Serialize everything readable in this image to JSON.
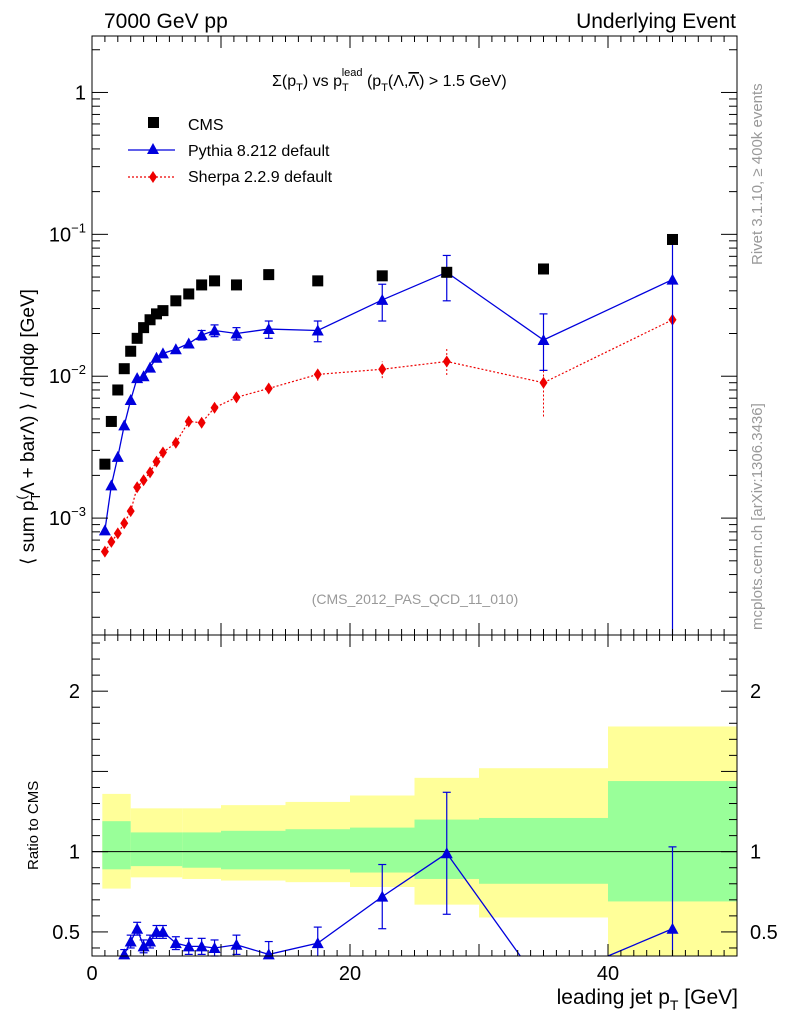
{
  "header": {
    "left": "7000 GeV pp",
    "right": "Underlying Event"
  },
  "side": {
    "rivet": "Rivet 3.1.10, ≥ 400k events",
    "mcplots": "mcplots.cern.ch [arXiv:1306.3436]"
  },
  "colors": {
    "cms": "#000000",
    "pythia": "#0000dd",
    "sherpa": "#ee0000",
    "band_inner": "#99ff99",
    "band_outer": "#ffff99"
  },
  "chart_data": [
    {
      "type": "scatter",
      "title": "Σ(pT) vs pT lead (pT(Λ,Λ̅) > 1.5 GeV)",
      "title_parts": {
        "t1": "Σ(p",
        "t2": "T",
        "t3": ") vs p",
        "t4": "T",
        "t5": "lead",
        "t6": " (p",
        "t7": "T",
        "t8": "(Λ,",
        "t9": "Λ",
        "t10": ") > 1.5 GeV)"
      },
      "ylabel": "⟨ sum pT(Λ + barΛ) ⟩ / dηdφ [GeV]",
      "ylabel_parts": {
        "a": "⟨ sum p",
        "b": "T",
        "c": "(",
        "d": "Λ + barΛ) ⟩ / dηdφ [GeV]"
      },
      "yscale": "log",
      "ylim": [
        0.00015,
        2.5
      ],
      "xlim": [
        0,
        50
      ],
      "yticks": [
        {
          "v": 0.001,
          "base": "10",
          "exp": "−3"
        },
        {
          "v": 0.01,
          "base": "10",
          "exp": "−2"
        },
        {
          "v": 0.1,
          "base": "10",
          "exp": "−1"
        },
        {
          "v": 1,
          "base": "1",
          "exp": ""
        }
      ],
      "annotation": "(CMS_2012_PAS_QCD_11_010)",
      "legend_position": "top-left",
      "series": [
        {
          "name": "CMS",
          "marker": "square",
          "x": [
            1.0,
            1.5,
            2.0,
            2.5,
            3.0,
            3.5,
            4.0,
            4.5,
            5.0,
            5.5,
            6.5,
            7.5,
            8.5,
            9.5,
            11.2,
            13.7,
            17.5,
            22.5,
            27.5,
            35,
            45
          ],
          "y": [
            0.0024,
            0.0048,
            0.008,
            0.0113,
            0.015,
            0.0185,
            0.022,
            0.025,
            0.0275,
            0.029,
            0.034,
            0.038,
            0.044,
            0.047,
            0.044,
            0.052,
            0.047,
            0.051,
            0.054,
            0.057,
            0.092
          ]
        },
        {
          "name": "Pythia 8.212 default",
          "marker": "triangle",
          "x": [
            1.0,
            1.5,
            2.0,
            2.5,
            3.0,
            3.5,
            4.0,
            4.5,
            5.0,
            5.5,
            6.5,
            7.5,
            8.5,
            9.5,
            11.2,
            13.7,
            17.5,
            22.5,
            27.5,
            35,
            45
          ],
          "y": [
            0.00082,
            0.0017,
            0.0027,
            0.0045,
            0.0068,
            0.0097,
            0.01,
            0.0115,
            0.0135,
            0.0145,
            0.0155,
            0.017,
            0.0195,
            0.021,
            0.02,
            0.0215,
            0.021,
            0.0345,
            0.054,
            0.018,
            0.048
          ],
          "err_lo": [
            3e-05,
            0.0001,
            0.0002,
            0.0002,
            0.0003,
            0.0004,
            0.0005,
            0.0005,
            0.0006,
            0.0006,
            0.0008,
            0.001,
            0.0015,
            0.002,
            0.002,
            0.003,
            0.0035,
            0.01,
            0.02,
            0.007,
            0.0479
          ],
          "err_hi": [
            3e-05,
            0.0001,
            0.0002,
            0.0002,
            0.0003,
            0.0004,
            0.0005,
            0.0005,
            0.0006,
            0.0006,
            0.0008,
            0.001,
            0.0015,
            0.002,
            0.002,
            0.003,
            0.0035,
            0.01,
            0.017,
            0.0095,
            0.048
          ]
        },
        {
          "name": "Sherpa 2.2.9 default",
          "marker": "diamond",
          "x": [
            1.0,
            1.5,
            2.0,
            2.5,
            3.0,
            3.5,
            4.0,
            4.5,
            5.0,
            5.5,
            6.5,
            7.5,
            8.5,
            9.5,
            11.2,
            13.7,
            17.5,
            22.5,
            27.5,
            35,
            45
          ],
          "y": [
            0.00058,
            0.00068,
            0.00078,
            0.00092,
            0.00112,
            0.00165,
            0.00185,
            0.0021,
            0.0025,
            0.0029,
            0.0034,
            0.0048,
            0.0047,
            0.006,
            0.0071,
            0.0082,
            0.0103,
            0.0112,
            0.0127,
            0.009,
            0.025
          ],
          "err_lo": [
            2e-05,
            2e-05,
            3e-05,
            3e-05,
            4e-05,
            5e-05,
            5e-05,
            6e-05,
            7e-05,
            8e-05,
            0.0001,
            0.0002,
            0.0002,
            0.0003,
            0.0004,
            0.0005,
            0.001,
            0.0015,
            0.0025,
            0.0038,
            0.0115
          ],
          "err_hi": [
            2e-05,
            2e-05,
            3e-05,
            3e-05,
            4e-05,
            5e-05,
            5e-05,
            6e-05,
            7e-05,
            8e-05,
            0.0001,
            0.0002,
            0.0002,
            0.0003,
            0.0004,
            0.0005,
            0.001,
            0.0015,
            0.003,
            0.0025,
            0.0
          ]
        }
      ]
    },
    {
      "type": "line",
      "title": "Ratio to CMS",
      "ylabel": "Ratio to CMS",
      "xlabel": "leading jet pT [GeV]",
      "xlabel_parts": {
        "a": "leading jet p",
        "b": "T",
        "c": " [GeV]"
      },
      "xlim": [
        0,
        50
      ],
      "ylim": [
        0.35,
        2.35
      ],
      "xticks": [
        "0",
        "20",
        "40"
      ],
      "xtick_values": [
        0,
        20,
        40
      ],
      "yticks": [
        "0.5",
        "1",
        "2"
      ],
      "ytick_values": [
        0.5,
        1,
        2
      ],
      "reference_line": 1,
      "bands": [
        {
          "x0": 0.8,
          "x1": 3,
          "inner": [
            0.89,
            1.19
          ],
          "outer": [
            0.77,
            1.36
          ]
        },
        {
          "x0": 3,
          "x1": 7,
          "inner": [
            0.91,
            1.12
          ],
          "outer": [
            0.84,
            1.27
          ]
        },
        {
          "x0": 7,
          "x1": 10,
          "inner": [
            0.9,
            1.12
          ],
          "outer": [
            0.83,
            1.27
          ]
        },
        {
          "x0": 10,
          "x1": 15,
          "inner": [
            0.89,
            1.13
          ],
          "outer": [
            0.82,
            1.29
          ]
        },
        {
          "x0": 15,
          "x1": 20,
          "inner": [
            0.89,
            1.14
          ],
          "outer": [
            0.81,
            1.31
          ]
        },
        {
          "x0": 20,
          "x1": 25,
          "inner": [
            0.87,
            1.15
          ],
          "outer": [
            0.78,
            1.35
          ]
        },
        {
          "x0": 25,
          "x1": 30,
          "inner": [
            0.83,
            1.2
          ],
          "outer": [
            0.67,
            1.46
          ]
        },
        {
          "x0": 30,
          "x1": 40,
          "inner": [
            0.8,
            1.21
          ],
          "outer": [
            0.59,
            1.52
          ]
        },
        {
          "x0": 40,
          "x1": 50,
          "inner": [
            0.69,
            1.44
          ],
          "outer": [
            0.35,
            1.78
          ]
        }
      ],
      "series": [
        {
          "name": "Pythia 8.212 default",
          "marker": "triangle",
          "x": [
            2.5,
            3.0,
            3.5,
            4.0,
            4.5,
            5.0,
            5.5,
            6.5,
            7.5,
            8.5,
            9.5,
            11.2,
            13.7,
            17.5,
            22.5,
            27.5,
            33.2
          ],
          "y": [
            0.36,
            0.44,
            0.52,
            0.41,
            0.44,
            0.5,
            0.5,
            0.43,
            0.41,
            0.41,
            0.4,
            0.42,
            0.36,
            0.43,
            0.72,
            0.99,
            0.35
          ],
          "err": [
            0.03,
            0.04,
            0.04,
            0.04,
            0.04,
            0.04,
            0.04,
            0.04,
            0.05,
            0.05,
            0.05,
            0.06,
            0.08,
            0.1,
            0.2,
            0.38,
            0.0
          ]
        },
        {
          "name": "Pythia 8.212 default (last bin)",
          "marker": "triangle",
          "x": [
            40.0,
            45
          ],
          "y": [
            0.35,
            0.52
          ],
          "err": [
            0.0,
            0.51
          ]
        }
      ]
    }
  ]
}
